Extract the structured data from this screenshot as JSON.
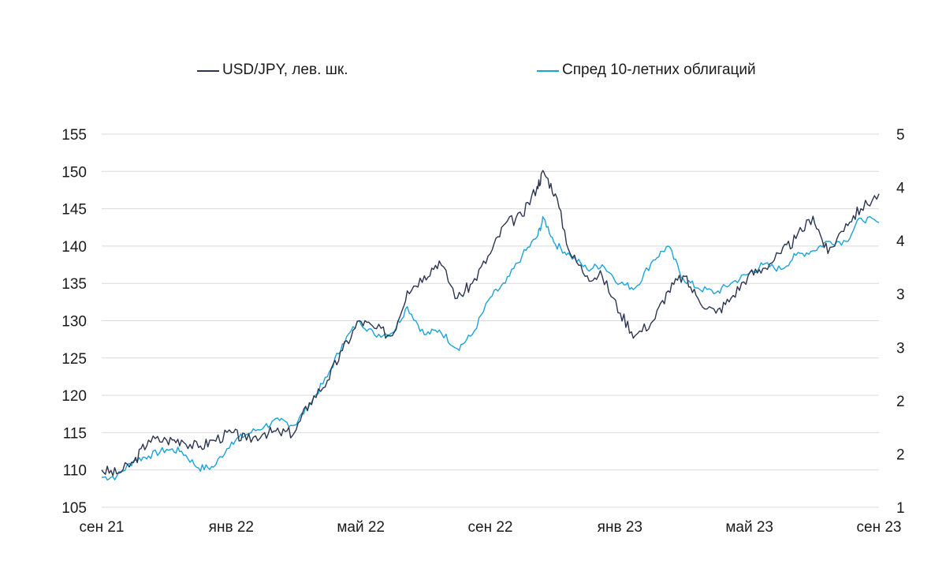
{
  "chart_data": {
    "type": "line",
    "legend": {
      "items": [
        {
          "label": "USD/JPY, лев. шк.",
          "color": "#2b3550"
        },
        {
          "label": "Спред 10-летних облигаций",
          "color": "#1aa3d9"
        }
      ]
    },
    "x_tick_labels": [
      "сен 21",
      "янв 22",
      "май 22",
      "сен 22",
      "янв 23",
      "май 23",
      "сен 23"
    ],
    "x_range": [
      "2021-09-01",
      "2023-09-01"
    ],
    "y_left": {
      "min": 105,
      "max": 155,
      "ticks": [
        105,
        110,
        115,
        120,
        125,
        130,
        135,
        140,
        145,
        150,
        155
      ]
    },
    "y_right": {
      "min": 1,
      "max": 5,
      "tick_labels": [
        "1",
        "2",
        "2",
        "3",
        "3",
        "4",
        "4",
        "5"
      ]
    },
    "grid": true,
    "series": [
      {
        "name": "USD/JPY, лев. шк.",
        "axis": "left",
        "color": "#2b3550",
        "points": [
          [
            "2021-09-01",
            110.0
          ],
          [
            "2021-09-15",
            109.5
          ],
          [
            "2021-10-01",
            111.0
          ],
          [
            "2021-10-15",
            114.0
          ],
          [
            "2021-11-01",
            114.0
          ],
          [
            "2021-11-15",
            114.0
          ],
          [
            "2021-12-01",
            113.0
          ],
          [
            "2021-12-15",
            114.0
          ],
          [
            "2022-01-01",
            115.0
          ],
          [
            "2022-01-15",
            114.0
          ],
          [
            "2022-02-01",
            115.0
          ],
          [
            "2022-02-15",
            115.0
          ],
          [
            "2022-03-01",
            115.0
          ],
          [
            "2022-03-15",
            119.0
          ],
          [
            "2022-04-01",
            122.0
          ],
          [
            "2022-04-15",
            126.0
          ],
          [
            "2022-05-01",
            130.0
          ],
          [
            "2022-05-15",
            129.0
          ],
          [
            "2022-06-01",
            128.0
          ],
          [
            "2022-06-15",
            134.0
          ],
          [
            "2022-07-01",
            136.0
          ],
          [
            "2022-07-15",
            138.0
          ],
          [
            "2022-08-01",
            133.0
          ],
          [
            "2022-08-15",
            135.0
          ],
          [
            "2022-09-01",
            139.0
          ],
          [
            "2022-09-15",
            143.0
          ],
          [
            "2022-10-01",
            144.0
          ],
          [
            "2022-10-15",
            148.0
          ],
          [
            "2022-10-21",
            150.0
          ],
          [
            "2022-11-01",
            147.0
          ],
          [
            "2022-11-15",
            139.0
          ],
          [
            "2022-12-01",
            136.0
          ],
          [
            "2022-12-15",
            136.0
          ],
          [
            "2023-01-01",
            131.0
          ],
          [
            "2023-01-15",
            128.0
          ],
          [
            "2023-02-01",
            130.0
          ],
          [
            "2023-02-15",
            134.0
          ],
          [
            "2023-03-01",
            136.0
          ],
          [
            "2023-03-15",
            133.0
          ],
          [
            "2023-04-01",
            131.0
          ],
          [
            "2023-04-15",
            133.0
          ],
          [
            "2023-05-01",
            136.0
          ],
          [
            "2023-05-15",
            137.0
          ],
          [
            "2023-06-01",
            139.0
          ],
          [
            "2023-06-15",
            141.0
          ],
          [
            "2023-07-01",
            144.0
          ],
          [
            "2023-07-15",
            139.0
          ],
          [
            "2023-08-01",
            143.0
          ],
          [
            "2023-08-15",
            145.0
          ],
          [
            "2023-09-01",
            147.0
          ]
        ]
      },
      {
        "name": "Спред 10-летних облигаций",
        "axis": "right",
        "color": "#1aa3d9",
        "points": [
          [
            "2021-09-01",
            1.32
          ],
          [
            "2021-09-15",
            1.33
          ],
          [
            "2021-10-01",
            1.5
          ],
          [
            "2021-10-15",
            1.55
          ],
          [
            "2021-11-01",
            1.62
          ],
          [
            "2021-11-15",
            1.6
          ],
          [
            "2021-12-01",
            1.42
          ],
          [
            "2021-12-15",
            1.43
          ],
          [
            "2022-01-01",
            1.7
          ],
          [
            "2022-01-15",
            1.78
          ],
          [
            "2022-02-01",
            1.87
          ],
          [
            "2022-02-15",
            1.93
          ],
          [
            "2022-03-01",
            1.88
          ],
          [
            "2022-03-15",
            2.1
          ],
          [
            "2022-04-01",
            2.4
          ],
          [
            "2022-04-15",
            2.75
          ],
          [
            "2022-05-01",
            3.0
          ],
          [
            "2022-05-15",
            2.85
          ],
          [
            "2022-06-01",
            2.87
          ],
          [
            "2022-06-15",
            3.15
          ],
          [
            "2022-07-01",
            2.85
          ],
          [
            "2022-07-15",
            2.9
          ],
          [
            "2022-08-01",
            2.7
          ],
          [
            "2022-08-15",
            2.85
          ],
          [
            "2022-09-01",
            3.25
          ],
          [
            "2022-09-15",
            3.4
          ],
          [
            "2022-10-01",
            3.7
          ],
          [
            "2022-10-15",
            3.9
          ],
          [
            "2022-10-21",
            4.1
          ],
          [
            "2022-11-01",
            3.82
          ],
          [
            "2022-11-15",
            3.7
          ],
          [
            "2022-12-01",
            3.55
          ],
          [
            "2022-12-15",
            3.6
          ],
          [
            "2023-01-01",
            3.4
          ],
          [
            "2023-01-15",
            3.35
          ],
          [
            "2023-02-01",
            3.65
          ],
          [
            "2023-02-15",
            3.8
          ],
          [
            "2023-03-01",
            3.45
          ],
          [
            "2023-03-15",
            3.35
          ],
          [
            "2023-04-01",
            3.3
          ],
          [
            "2023-04-15",
            3.4
          ],
          [
            "2023-05-01",
            3.5
          ],
          [
            "2023-05-15",
            3.6
          ],
          [
            "2023-06-01",
            3.55
          ],
          [
            "2023-06-15",
            3.7
          ],
          [
            "2023-07-01",
            3.75
          ],
          [
            "2023-07-15",
            3.85
          ],
          [
            "2023-08-01",
            3.85
          ],
          [
            "2023-08-15",
            4.1
          ],
          [
            "2023-09-01",
            4.05
          ]
        ]
      }
    ]
  }
}
